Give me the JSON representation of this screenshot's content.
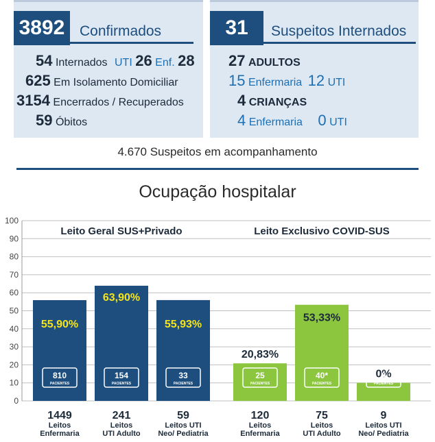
{
  "summary": {
    "confirmed_value": "3892",
    "confirmed_label": "Confirmados",
    "suspects_value": "31",
    "suspects_label": "Suspeitos Internados",
    "left_rows": {
      "internados_num": "54",
      "internados_label": "Internados",
      "uti_label": "UTI",
      "uti_num": "26",
      "enf_label": "Enf.",
      "enf_num": "28",
      "isolamento_num": "625",
      "isolamento_label": "Em Isolamento Domiciliar",
      "encerrados_num": "3154",
      "encerrados_label": "Encerrados / Recuperados",
      "obitos_num": "59",
      "obitos_label": "Óbitos"
    },
    "right_rows": {
      "adultos_num": "27",
      "adultos_label": "ADULTOS",
      "adultos_enf_num": "15",
      "adultos_enf_label": "Enfermaria",
      "adultos_uti_num": "12",
      "adultos_uti_label": "UTI",
      "criancas_num": "4",
      "criancas_label": "CRIANÇAS",
      "criancas_enf_num": "4",
      "criancas_enf_label": "Enfermaria",
      "criancas_uti_num": "0",
      "criancas_uti_label": "UTI"
    },
    "acompanhamento": "4.670 Suspeitos em acompanhamento"
  },
  "section_title": "Ocupação hospitalar",
  "colors": {
    "navy": "#1d4e7e",
    "green": "#8cc63f",
    "yellow": "#f6e51a",
    "panel": "#dde8f3"
  },
  "chart_data": {
    "type": "bar",
    "ylim": [
      0,
      100
    ],
    "yticks": [
      0,
      10,
      20,
      30,
      40,
      50,
      60,
      70,
      80,
      90,
      100
    ],
    "grid": true,
    "groups": [
      {
        "title": "Leito Geral SUS+Privado",
        "color": "navy",
        "bars": [
          {
            "value": 55.9,
            "label": "55,90%",
            "patients": "810",
            "unit": "PACIENTES",
            "beds": "1449",
            "cat_line1": "Leitos",
            "cat_line2": "Enfermaria"
          },
          {
            "value": 63.9,
            "label": "63,90%",
            "patients": "154",
            "unit": "PACIENTES",
            "beds": "241",
            "cat_line1": "Leitos",
            "cat_line2": "UTI Adulto"
          },
          {
            "value": 55.93,
            "label": "55,93%",
            "patients": "33",
            "unit": "PACIENTES",
            "beds": "59",
            "cat_line1": "Leitos UTI",
            "cat_line2": "Neo/ Pediatria"
          }
        ]
      },
      {
        "title": "Leito Exclusivo COVID-SUS",
        "color": "green",
        "bars": [
          {
            "value": 20.83,
            "label": "20,83%",
            "patients": "25",
            "unit": "PACIENTES",
            "beds": "120",
            "cat_line1": "Leitos",
            "cat_line2": "Enfermaria"
          },
          {
            "value": 53.33,
            "label": "53,33%",
            "patients": "40*",
            "unit": "PACIENTES",
            "beds": "75",
            "cat_line1": "Leitos",
            "cat_line2": "UTI Adulto"
          },
          {
            "value": 0,
            "label": "0%",
            "patients": "0",
            "unit": "PACIENTES",
            "beds": "9",
            "cat_line1": "Leitos UTI",
            "cat_line2": "Neo/ Pediatria"
          }
        ]
      }
    ]
  }
}
